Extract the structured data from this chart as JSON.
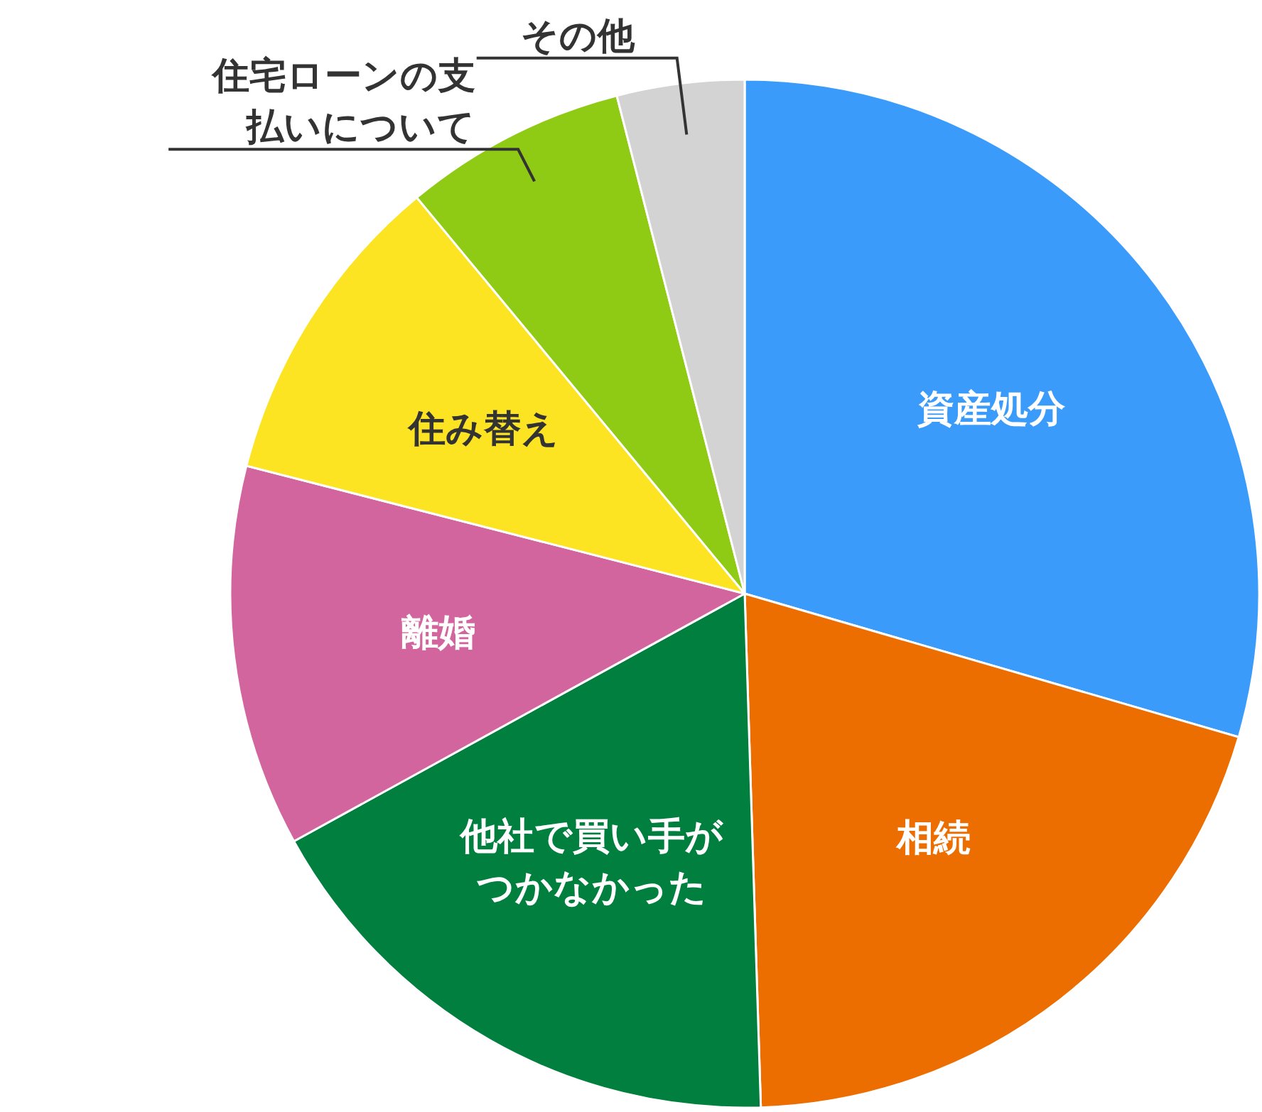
{
  "chart_data": {
    "type": "pie",
    "categories": [
      "資産処分",
      "相続",
      "他社で買い手がつかなかった",
      "離婚",
      "住み替え",
      "住宅ローンの支払いについて",
      "その他"
    ],
    "values": [
      29.5,
      20,
      17.5,
      12,
      10,
      7,
      4
    ],
    "colors": [
      "#3a9bfb",
      "#ec6d00",
      "#007f3f",
      "#d3659e",
      "#fce423",
      "#8fcb14",
      "#d3d3d3"
    ]
  }
}
